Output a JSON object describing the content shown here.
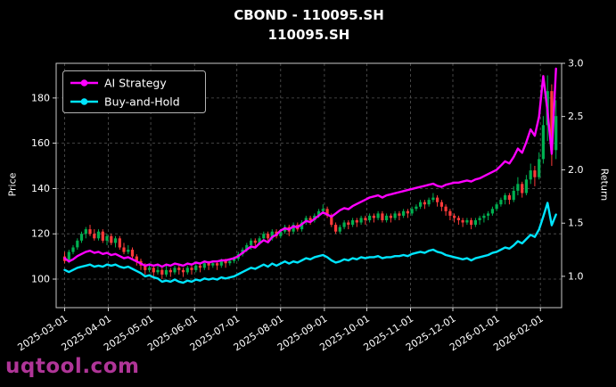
{
  "watermark": {
    "text": "uqtool.com",
    "color": "#b03598"
  },
  "chart_data": {
    "type": "candlestick+line",
    "title": "CBOND - 110095.SH",
    "subtitle": "110095.SH",
    "ylabel_left": "Price",
    "ylabel_right": "Return",
    "background": "#000000",
    "text_color": "#ffffff",
    "spine_color": "#c8c8c8",
    "grid": {
      "show": true,
      "color": "#555555",
      "style": "dashed"
    },
    "axes": {
      "x_unit": "days-from-2025-03-01",
      "xlim": [
        -6,
        352
      ],
      "ylim_left": [
        87.4,
        195.3
      ],
      "ylim_right": [
        0.706,
        3.0
      ],
      "yticks_left": [
        100,
        120,
        140,
        160,
        180
      ],
      "yticks_right": [
        1.0,
        1.5,
        2.0,
        2.5,
        3.0
      ],
      "xticks": [
        {
          "t": 0,
          "label": "2025-03-01"
        },
        {
          "t": 31,
          "label": "2025-04-01"
        },
        {
          "t": 61,
          "label": "2025-05-01"
        },
        {
          "t": 92,
          "label": "2025-06-01"
        },
        {
          "t": 122,
          "label": "2025-07-01"
        },
        {
          "t": 153,
          "label": "2025-08-01"
        },
        {
          "t": 184,
          "label": "2025-09-01"
        },
        {
          "t": 214,
          "label": "2025-10-01"
        },
        {
          "t": 245,
          "label": "2025-11-01"
        },
        {
          "t": 275,
          "label": "2025-12-01"
        },
        {
          "t": 306,
          "label": "2026-01-01"
        },
        {
          "t": 337,
          "label": "2026-02-01"
        }
      ]
    },
    "legend": {
      "position": "upper-left",
      "entries": [
        {
          "label": "AI Strategy",
          "color": "#ff00ff"
        },
        {
          "label": "Buy-and-Hold",
          "color": "#00e5ff"
        }
      ]
    },
    "x": [
      0,
      3,
      6,
      9,
      12,
      15,
      18,
      21,
      24,
      27,
      30,
      33,
      36,
      39,
      42,
      45,
      48,
      51,
      54,
      57,
      60,
      63,
      66,
      69,
      72,
      75,
      78,
      81,
      84,
      87,
      90,
      93,
      96,
      99,
      102,
      105,
      108,
      111,
      114,
      117,
      120,
      123,
      126,
      129,
      132,
      135,
      138,
      141,
      144,
      147,
      150,
      153,
      156,
      159,
      162,
      165,
      168,
      171,
      174,
      177,
      180,
      183,
      186,
      189,
      192,
      195,
      198,
      201,
      204,
      207,
      210,
      213,
      216,
      219,
      222,
      225,
      228,
      231,
      234,
      237,
      240,
      243,
      246,
      249,
      252,
      255,
      258,
      261,
      264,
      267,
      270,
      273,
      276,
      279,
      282,
      285,
      288,
      291,
      294,
      297,
      300,
      303,
      306,
      309,
      312,
      315,
      318,
      321,
      324,
      327,
      330,
      333,
      336,
      339,
      342,
      345,
      348
    ],
    "candles": {
      "up_color": "#00b050",
      "down_color": "#ff3a3a",
      "ohlc": [
        [
          110,
          112,
          107,
          108
        ],
        [
          108,
          113,
          107,
          112
        ],
        [
          112,
          115,
          111,
          114
        ],
        [
          114,
          118,
          113,
          117
        ],
        [
          117,
          121,
          116,
          120
        ],
        [
          120,
          123,
          118,
          122
        ],
        [
          122,
          124,
          119,
          120
        ],
        [
          120,
          122,
          117,
          118
        ],
        [
          118,
          122,
          117,
          121
        ],
        [
          121,
          122,
          116,
          117
        ],
        [
          117,
          120,
          115,
          119
        ],
        [
          119,
          120,
          115,
          116
        ],
        [
          116,
          119,
          114,
          118
        ],
        [
          118,
          119,
          113,
          114
        ],
        [
          114,
          116,
          111,
          112
        ],
        [
          112,
          115,
          111,
          113
        ],
        [
          113,
          114,
          109,
          110
        ],
        [
          110,
          111,
          106,
          108
        ],
        [
          108,
          109,
          104,
          106
        ],
        [
          106,
          107,
          102,
          104
        ],
        [
          104,
          107,
          103,
          105
        ],
        [
          105,
          106,
          101,
          103
        ],
        [
          103,
          106,
          102,
          104
        ],
        [
          104,
          105,
          100,
          102
        ],
        [
          102,
          106,
          101,
          104
        ],
        [
          104,
          105,
          101,
          103
        ],
        [
          103,
          106,
          102,
          105
        ],
        [
          105,
          106,
          102,
          104
        ],
        [
          104,
          105,
          101,
          103
        ],
        [
          103,
          106,
          102,
          105
        ],
        [
          105,
          106,
          102,
          104
        ],
        [
          104,
          107,
          103,
          106
        ],
        [
          106,
          107,
          103,
          105
        ],
        [
          105,
          108,
          104,
          107
        ],
        [
          107,
          108,
          104,
          106
        ],
        [
          106,
          108,
          105,
          107
        ],
        [
          107,
          108,
          104,
          106
        ],
        [
          106,
          109,
          105,
          108
        ],
        [
          108,
          109,
          105,
          107
        ],
        [
          107,
          109,
          106,
          108
        ],
        [
          108,
          110,
          107,
          109
        ],
        [
          109,
          112,
          108,
          111
        ],
        [
          111,
          114,
          110,
          113
        ],
        [
          113,
          116,
          112,
          115
        ],
        [
          115,
          118,
          113,
          117
        ],
        [
          117,
          118,
          114,
          116
        ],
        [
          116,
          119,
          115,
          118
        ],
        [
          118,
          121,
          117,
          120
        ],
        [
          120,
          121,
          116,
          118
        ],
        [
          118,
          122,
          117,
          121
        ],
        [
          121,
          122,
          118,
          119
        ],
        [
          119,
          122,
          118,
          121
        ],
        [
          121,
          124,
          120,
          123
        ],
        [
          123,
          124,
          119,
          121
        ],
        [
          121,
          125,
          120,
          124
        ],
        [
          124,
          125,
          121,
          122
        ],
        [
          122,
          126,
          121,
          125
        ],
        [
          125,
          128,
          124,
          127
        ],
        [
          127,
          128,
          124,
          126
        ],
        [
          126,
          129,
          125,
          128
        ],
        [
          128,
          131,
          127,
          130
        ],
        [
          130,
          133,
          129,
          131
        ],
        [
          131,
          132,
          127,
          128
        ],
        [
          128,
          129,
          123,
          124
        ],
        [
          124,
          125,
          120,
          121
        ],
        [
          121,
          124,
          120,
          123
        ],
        [
          123,
          126,
          122,
          125
        ],
        [
          125,
          126,
          122,
          124
        ],
        [
          124,
          127,
          123,
          126
        ],
        [
          126,
          127,
          123,
          125
        ],
        [
          125,
          128,
          124,
          127
        ],
        [
          127,
          128,
          124,
          126
        ],
        [
          126,
          129,
          125,
          128
        ],
        [
          128,
          129,
          125,
          127
        ],
        [
          127,
          130,
          126,
          129
        ],
        [
          129,
          130,
          125,
          126
        ],
        [
          126,
          129,
          125,
          128
        ],
        [
          128,
          129,
          125,
          127
        ],
        [
          127,
          130,
          126,
          129
        ],
        [
          129,
          130,
          126,
          128
        ],
        [
          128,
          131,
          127,
          130
        ],
        [
          130,
          131,
          127,
          129
        ],
        [
          129,
          132,
          128,
          131
        ],
        [
          131,
          133,
          130,
          132
        ],
        [
          132,
          135,
          131,
          134
        ],
        [
          134,
          135,
          131,
          133
        ],
        [
          133,
          136,
          132,
          135
        ],
        [
          135,
          138,
          134,
          136
        ],
        [
          136,
          137,
          132,
          134
        ],
        [
          134,
          135,
          130,
          132
        ],
        [
          132,
          133,
          128,
          130
        ],
        [
          130,
          131,
          126,
          128
        ],
        [
          128,
          129,
          125,
          127
        ],
        [
          127,
          128,
          124,
          126
        ],
        [
          126,
          127,
          123,
          125
        ],
        [
          125,
          127,
          124,
          126
        ],
        [
          126,
          127,
          122,
          124
        ],
        [
          124,
          127,
          123,
          126
        ],
        [
          126,
          128,
          124,
          127
        ],
        [
          127,
          129,
          125,
          128
        ],
        [
          128,
          130,
          126,
          129
        ],
        [
          129,
          132,
          128,
          131
        ],
        [
          131,
          134,
          130,
          133
        ],
        [
          133,
          136,
          132,
          135
        ],
        [
          135,
          138,
          133,
          137
        ],
        [
          137,
          138,
          133,
          135
        ],
        [
          135,
          141,
          134,
          139
        ],
        [
          139,
          145,
          137,
          142
        ],
        [
          142,
          143,
          136,
          138
        ],
        [
          138,
          146,
          137,
          144
        ],
        [
          144,
          151,
          142,
          148
        ],
        [
          148,
          150,
          141,
          145
        ],
        [
          145,
          156,
          144,
          153
        ],
        [
          153,
          172,
          151,
          168
        ],
        [
          168,
          190,
          161,
          183
        ],
        [
          183,
          186,
          150,
          157
        ],
        [
          157,
          179,
          153,
          172
        ]
      ]
    },
    "series": [
      {
        "name": "AI Strategy",
        "axis": "right",
        "color": "#ff00ff",
        "values": [
          1.17,
          1.14,
          1.16,
          1.19,
          1.21,
          1.23,
          1.24,
          1.22,
          1.23,
          1.21,
          1.22,
          1.2,
          1.21,
          1.19,
          1.17,
          1.18,
          1.16,
          1.14,
          1.12,
          1.1,
          1.11,
          1.1,
          1.11,
          1.09,
          1.11,
          1.1,
          1.12,
          1.11,
          1.1,
          1.12,
          1.11,
          1.13,
          1.12,
          1.14,
          1.13,
          1.14,
          1.14,
          1.15,
          1.15,
          1.16,
          1.17,
          1.19,
          1.22,
          1.25,
          1.28,
          1.27,
          1.31,
          1.34,
          1.32,
          1.37,
          1.39,
          1.43,
          1.45,
          1.44,
          1.47,
          1.46,
          1.49,
          1.52,
          1.51,
          1.54,
          1.57,
          1.6,
          1.58,
          1.56,
          1.59,
          1.62,
          1.64,
          1.63,
          1.66,
          1.68,
          1.7,
          1.72,
          1.74,
          1.75,
          1.76,
          1.74,
          1.76,
          1.77,
          1.78,
          1.79,
          1.8,
          1.81,
          1.82,
          1.83,
          1.84,
          1.85,
          1.86,
          1.87,
          1.85,
          1.84,
          1.86,
          1.87,
          1.88,
          1.88,
          1.89,
          1.9,
          1.89,
          1.91,
          1.92,
          1.94,
          1.96,
          1.98,
          2.0,
          2.04,
          2.08,
          2.06,
          2.12,
          2.2,
          2.16,
          2.26,
          2.38,
          2.32,
          2.5,
          2.88,
          2.55,
          2.15,
          2.95
        ]
      },
      {
        "name": "Buy-and-Hold",
        "axis": "right",
        "color": "#00e5ff",
        "values": [
          1.06,
          1.04,
          1.06,
          1.08,
          1.09,
          1.1,
          1.11,
          1.09,
          1.1,
          1.09,
          1.11,
          1.1,
          1.11,
          1.09,
          1.08,
          1.09,
          1.07,
          1.05,
          1.03,
          1.0,
          1.01,
          0.99,
          0.98,
          0.95,
          0.96,
          0.95,
          0.97,
          0.95,
          0.94,
          0.96,
          0.95,
          0.97,
          0.96,
          0.98,
          0.97,
          0.98,
          0.97,
          0.99,
          0.98,
          0.99,
          1.0,
          1.02,
          1.04,
          1.06,
          1.08,
          1.07,
          1.09,
          1.11,
          1.09,
          1.12,
          1.1,
          1.12,
          1.14,
          1.12,
          1.14,
          1.13,
          1.15,
          1.17,
          1.16,
          1.18,
          1.19,
          1.2,
          1.18,
          1.15,
          1.13,
          1.14,
          1.16,
          1.15,
          1.17,
          1.16,
          1.18,
          1.17,
          1.18,
          1.18,
          1.19,
          1.17,
          1.18,
          1.18,
          1.19,
          1.19,
          1.2,
          1.19,
          1.21,
          1.22,
          1.23,
          1.22,
          1.24,
          1.25,
          1.23,
          1.22,
          1.2,
          1.19,
          1.18,
          1.17,
          1.16,
          1.17,
          1.15,
          1.17,
          1.18,
          1.19,
          1.2,
          1.22,
          1.23,
          1.25,
          1.27,
          1.26,
          1.29,
          1.33,
          1.31,
          1.35,
          1.39,
          1.37,
          1.44,
          1.56,
          1.69,
          1.48,
          1.58
        ]
      }
    ]
  }
}
